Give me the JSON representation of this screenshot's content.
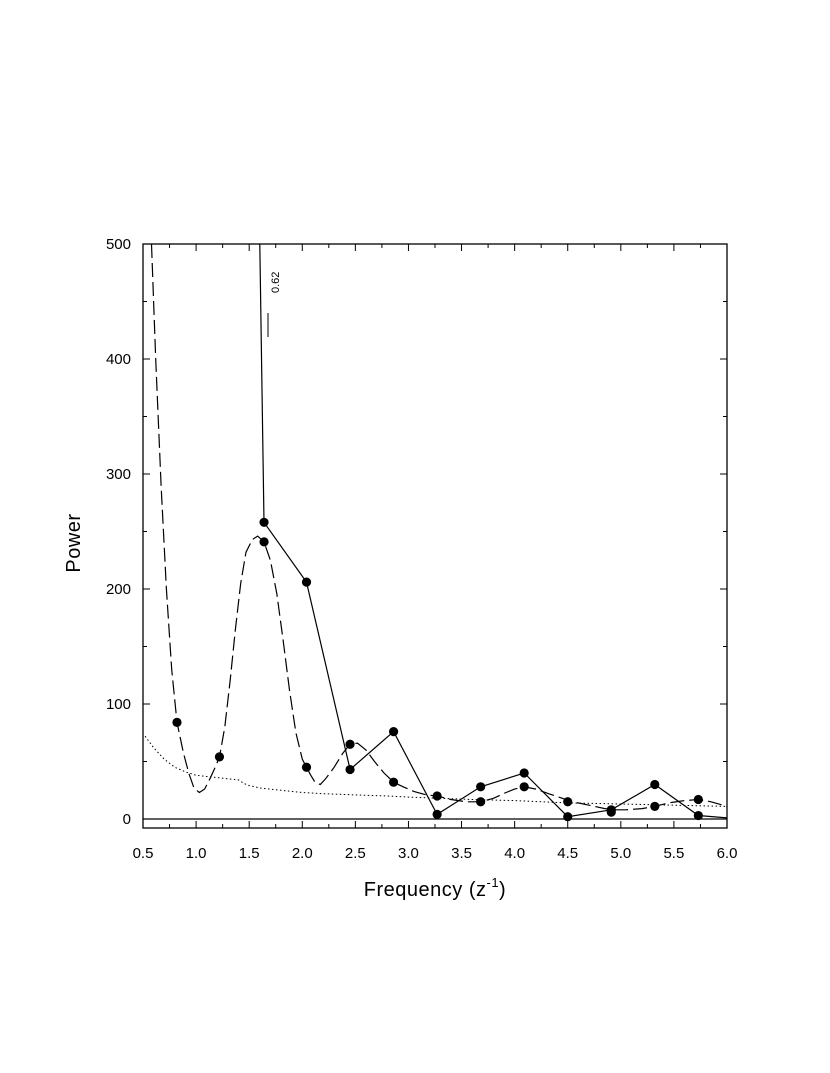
{
  "chart_data": {
    "type": "line",
    "title": "",
    "xlabel": "Frequency (z",
    "xlabel_sup": "-1",
    "xlabel_close": ")",
    "ylabel": "Power",
    "xlim": [
      0.5,
      6.0
    ],
    "ylim": [
      0,
      500
    ],
    "x_ticks": [
      "0.5",
      "1.0",
      "1.5",
      "2.0",
      "2.5",
      "3.0",
      "3.5",
      "4.0",
      "4.5",
      "5.0",
      "5.5",
      "6.0"
    ],
    "y_ticks": [
      "0",
      "100",
      "200",
      "300",
      "400",
      "500"
    ],
    "grid": false,
    "annotations": [
      {
        "text": "0.62",
        "x": 1.68,
        "y": 475
      }
    ],
    "series": [
      {
        "style": "solid",
        "curve": [
          [
            1.6,
            500
          ],
          [
            1.64,
            258
          ],
          [
            2.04,
            206
          ],
          [
            2.45,
            43
          ],
          [
            2.86,
            76
          ],
          [
            3.27,
            4
          ],
          [
            3.68,
            28
          ],
          [
            4.09,
            40
          ],
          [
            4.5,
            2
          ],
          [
            4.91,
            8
          ],
          [
            5.32,
            30
          ],
          [
            5.73,
            3
          ],
          [
            6.0,
            1
          ]
        ],
        "markers": [
          [
            1.64,
            258
          ],
          [
            2.04,
            206
          ],
          [
            2.45,
            43
          ],
          [
            2.86,
            76
          ],
          [
            3.27,
            4
          ],
          [
            3.68,
            28
          ],
          [
            4.09,
            40
          ],
          [
            4.5,
            2
          ],
          [
            4.91,
            8
          ],
          [
            5.32,
            30
          ],
          [
            5.73,
            3
          ]
        ]
      },
      {
        "style": "dashed",
        "curve": [
          [
            0.58,
            500
          ],
          [
            0.62,
            400
          ],
          [
            0.67,
            290
          ],
          [
            0.72,
            200
          ],
          [
            0.77,
            130
          ],
          [
            0.82,
            84
          ],
          [
            0.88,
            58
          ],
          [
            0.93,
            40
          ],
          [
            0.98,
            27
          ],
          [
            1.03,
            23
          ],
          [
            1.08,
            26
          ],
          [
            1.13,
            35
          ],
          [
            1.18,
            45
          ],
          [
            1.22,
            54
          ],
          [
            1.27,
            80
          ],
          [
            1.32,
            120
          ],
          [
            1.37,
            165
          ],
          [
            1.42,
            205
          ],
          [
            1.47,
            232
          ],
          [
            1.53,
            243
          ],
          [
            1.58,
            246
          ],
          [
            1.64,
            241
          ],
          [
            1.7,
            225
          ],
          [
            1.76,
            196
          ],
          [
            1.82,
            155
          ],
          [
            1.88,
            112
          ],
          [
            1.94,
            75
          ],
          [
            2.0,
            52
          ],
          [
            2.04,
            45
          ],
          [
            2.08,
            38
          ],
          [
            2.12,
            32
          ],
          [
            2.17,
            30
          ],
          [
            2.22,
            35
          ],
          [
            2.3,
            45
          ],
          [
            2.38,
            57
          ],
          [
            2.45,
            65
          ],
          [
            2.52,
            66
          ],
          [
            2.6,
            60
          ],
          [
            2.68,
            50
          ],
          [
            2.77,
            40
          ],
          [
            2.86,
            32
          ],
          [
            2.95,
            28
          ],
          [
            3.05,
            24
          ],
          [
            3.17,
            21
          ],
          [
            3.27,
            20
          ],
          [
            3.4,
            17
          ],
          [
            3.55,
            15
          ],
          [
            3.68,
            15
          ],
          [
            3.8,
            18
          ],
          [
            3.92,
            23
          ],
          [
            4.0,
            26
          ],
          [
            4.09,
            28
          ],
          [
            4.2,
            26
          ],
          [
            4.32,
            22
          ],
          [
            4.45,
            18
          ],
          [
            4.55,
            15
          ],
          [
            4.7,
            12
          ],
          [
            4.85,
            9
          ],
          [
            4.95,
            8
          ],
          [
            5.05,
            8
          ],
          [
            5.2,
            9
          ],
          [
            5.32,
            11
          ],
          [
            5.45,
            14
          ],
          [
            5.6,
            16
          ],
          [
            5.73,
            17
          ],
          [
            5.85,
            15
          ],
          [
            6.0,
            11
          ]
        ],
        "markers": [
          [
            0.82,
            84
          ],
          [
            1.22,
            54
          ],
          [
            1.64,
            241
          ],
          [
            2.04,
            45
          ],
          [
            2.45,
            65
          ],
          [
            2.86,
            32
          ],
          [
            3.27,
            20
          ],
          [
            3.68,
            15
          ],
          [
            4.09,
            28
          ],
          [
            4.5,
            15
          ],
          [
            4.91,
            6
          ],
          [
            5.32,
            11
          ],
          [
            5.73,
            17
          ]
        ]
      },
      {
        "style": "dotted",
        "curve": [
          [
            0.52,
            72
          ],
          [
            0.6,
            62
          ],
          [
            0.7,
            52
          ],
          [
            0.8,
            45
          ],
          [
            0.9,
            41
          ],
          [
            1.0,
            38
          ],
          [
            1.1,
            37
          ],
          [
            1.2,
            36
          ],
          [
            1.3,
            35
          ],
          [
            1.4,
            34
          ],
          [
            1.45,
            31
          ],
          [
            1.5,
            29
          ],
          [
            1.6,
            27
          ],
          [
            1.8,
            25
          ],
          [
            2.0,
            23
          ],
          [
            2.2,
            22
          ],
          [
            2.5,
            21
          ],
          [
            2.8,
            20
          ],
          [
            3.0,
            19
          ],
          [
            3.3,
            18
          ],
          [
            3.6,
            17
          ],
          [
            4.0,
            16
          ],
          [
            4.5,
            14
          ],
          [
            5.0,
            13
          ],
          [
            5.5,
            12
          ],
          [
            6.0,
            11
          ]
        ],
        "markers": []
      }
    ]
  }
}
